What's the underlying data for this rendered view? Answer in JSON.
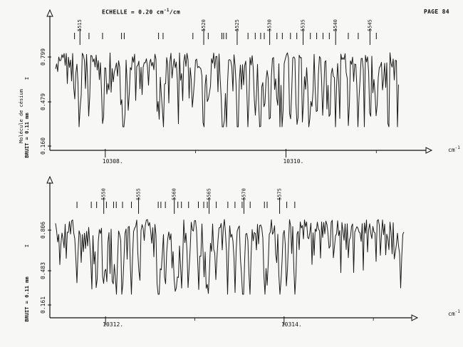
{
  "header": {
    "scale_label": "ECHELLE = 0.20 cm",
    "scale_exp": "-1",
    "scale_unit": "/cm",
    "page_label": "PAGE 84"
  },
  "chart_data": [
    {
      "type": "line",
      "title": "",
      "ylabel_molecule": "Molécule de césium",
      "ylabel_noise": "BRUIT = 0.11 mm",
      "ylabel_i": "I",
      "x_unit": "cm",
      "x_unit_exp": "-1",
      "xlim": [
        10307.45,
        10311.25
      ],
      "ylim": [
        0.0,
        1.0
      ],
      "x_ticks": [
        {
          "value": 10308,
          "label": "10308."
        },
        {
          "value": 10310,
          "label": "10310."
        }
      ],
      "y_ticks": [
        {
          "value": 0.16,
          "label": "0.160"
        },
        {
          "value": 0.479,
          "label": "0.479"
        },
        {
          "value": 0.799,
          "label": "0.799"
        }
      ],
      "line_labels": [
        {
          "x": 10307.72,
          "label": "5515"
        },
        {
          "x": 10309.09,
          "label": "5520"
        },
        {
          "x": 10309.46,
          "label": "5525"
        },
        {
          "x": 10309.82,
          "label": "5530"
        },
        {
          "x": 10310.19,
          "label": "5535"
        },
        {
          "x": 10310.55,
          "label": "5540"
        },
        {
          "x": 10310.93,
          "label": "5545"
        }
      ],
      "line_markers": [
        10307.66,
        10307.82,
        10307.97,
        10308.18,
        10308.21,
        10308.59,
        10308.64,
        10308.97,
        10309.14,
        10309.29,
        10309.31,
        10309.34,
        10309.58,
        10309.66,
        10309.72,
        10309.76,
        10309.9,
        10309.96,
        10310.05,
        10310.12,
        10310.27,
        10310.34,
        10310.41,
        10310.48,
        10310.69,
        10310.8,
        10311.0
      ]
    },
    {
      "type": "line",
      "title": "",
      "ylabel_noise": "BRUIT = 0.11 mm",
      "ylabel_i": "I",
      "x_unit": "cm",
      "x_unit_exp": "-1",
      "xlim": [
        10311.44,
        10315.35
      ],
      "ylim": [
        0.0,
        1.0
      ],
      "x_ticks": [
        {
          "value": 10312,
          "label": "10312."
        },
        {
          "value": 10314,
          "label": "10314."
        }
      ],
      "y_ticks": [
        {
          "value": 0.161,
          "label": "0.161"
        },
        {
          "value": 0.483,
          "label": "0.483"
        },
        {
          "value": 0.806,
          "label": "0.806"
        }
      ],
      "line_labels": [
        {
          "x": 10311.98,
          "label": "5550"
        },
        {
          "x": 10312.37,
          "label": "5555"
        },
        {
          "x": 10312.77,
          "label": "5560"
        },
        {
          "x": 10313.16,
          "label": "5565"
        },
        {
          "x": 10313.55,
          "label": "5570"
        },
        {
          "x": 10313.95,
          "label": "5575"
        }
      ],
      "line_markers": [
        10311.68,
        10311.84,
        10311.9,
        10312.01,
        10312.09,
        10312.12,
        10312.19,
        10312.29,
        10312.59,
        10312.62,
        10312.67,
        10312.81,
        10312.85,
        10312.93,
        10313.04,
        10313.1,
        10313.14,
        10313.24,
        10313.37,
        10313.45,
        10313.53,
        10313.62,
        10313.78,
        10313.81,
        10314.03,
        10314.12
      ]
    }
  ]
}
